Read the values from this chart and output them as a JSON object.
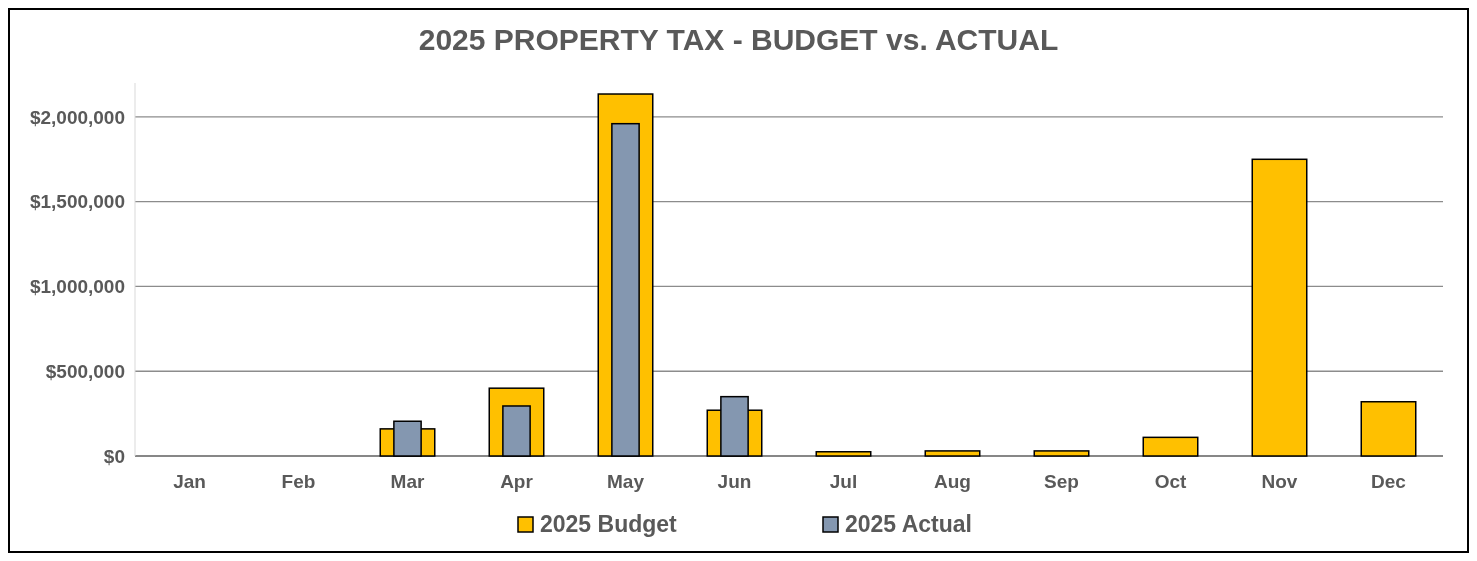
{
  "chart_data": {
    "type": "bar",
    "title": "2025 PROPERTY TAX - BUDGET vs. ACTUAL",
    "categories": [
      "Jan",
      "Feb",
      "Mar",
      "Apr",
      "May",
      "Jun",
      "Jul",
      "Aug",
      "Sep",
      "Oct",
      "Nov",
      "Dec"
    ],
    "series": [
      {
        "name": "2025 Budget",
        "color": "#ffc000",
        "values": [
          0,
          0,
          160000,
          400000,
          2135000,
          270000,
          25000,
          30000,
          30000,
          110000,
          1750000,
          320000
        ]
      },
      {
        "name": "2025 Actual",
        "color": "#8497b0",
        "values": [
          0,
          0,
          205000,
          295000,
          1960000,
          350000,
          null,
          null,
          null,
          null,
          null,
          null
        ]
      }
    ],
    "ylim": [
      0,
      2200000
    ],
    "yticks": [
      {
        "value": 0,
        "label": "$0"
      },
      {
        "value": 500000,
        "label": "$500,000"
      },
      {
        "value": 1000000,
        "label": "$1,000,000"
      },
      {
        "value": 1500000,
        "label": "$1,500,000"
      },
      {
        "value": 2000000,
        "label": "$2,000,000"
      }
    ],
    "grid": "y",
    "legend": "bottom"
  }
}
